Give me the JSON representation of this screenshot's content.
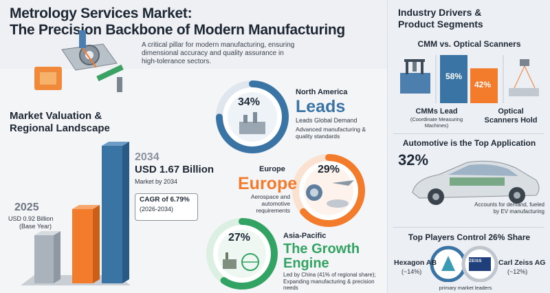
{
  "header": {
    "title_line1": "Metrology Services Market:",
    "title_line2": "The Precision Backbone of Modern Manufacturing",
    "description": "A critical pillar for modern manufacturing, ensuring dimensional accuracy and quality assurance in high-tolerance sectors."
  },
  "valuation": {
    "heading_line1": "Market Valuation &",
    "heading_line2": "Regional Landscape",
    "year_2025": "2025",
    "value_2025": "USD 0.92 Billion",
    "label_2025": "(Base Year)",
    "year_2034": "2034",
    "value_2034": "USD 1.67 Billion",
    "label_2034": "Market by 2034",
    "cagr": "CAGR of 6.79%",
    "cagr_period": "(2026-2034)"
  },
  "regions": {
    "north_america": {
      "title": "North America",
      "pct": "34%",
      "share": 0.34,
      "word": "Leads",
      "sub": "Leads Global Demand",
      "note": "Advanced manufacturing & quality standards"
    },
    "europe": {
      "title": "Europe",
      "pct": "29%",
      "share": 0.29,
      "word": "Europe",
      "note": "Aerospace and automotive requirements"
    },
    "asia": {
      "title": "Asia-Pacific",
      "pct": "27%",
      "share": 0.27,
      "word1": "The Growth",
      "word2": "Engine",
      "note": "Led by China (41% of regional share); Expanding manufacturing & precision needs"
    }
  },
  "drivers": {
    "heading_line1": "Industry Drivers &",
    "heading_line2": "Product Segments",
    "cmm_vs": "CMM vs. Optical Scanners",
    "cmm_pct": "58%",
    "cmm_share": 0.58,
    "optical_pct": "42%",
    "optical_share": 0.42,
    "cmm_label": "CMMs Lead",
    "cmm_sub": "(Coordinate Measuring Machines)",
    "optical_label_1": "Optical",
    "optical_label_2": "Scanners Hold",
    "auto_heading": "Automotive is the Top Application",
    "auto_pct": "32%",
    "auto_note": "Accounts for demand, fueled by EV manufacturing",
    "players_heading": "Top Players Control 26% Share",
    "hexagon": "Hexagon AB",
    "hexagon_pct": "(~14%)",
    "zeiss": "Carl Zeiss AG",
    "zeiss_pct": "(~12%)",
    "zeiss_logo": "ZEISS",
    "leaders": "primary market leaders"
  },
  "colors": {
    "blue": "#3a74a5",
    "orange": "#f27b2c",
    "green": "#32a362",
    "grey": "#9aa3ad"
  }
}
